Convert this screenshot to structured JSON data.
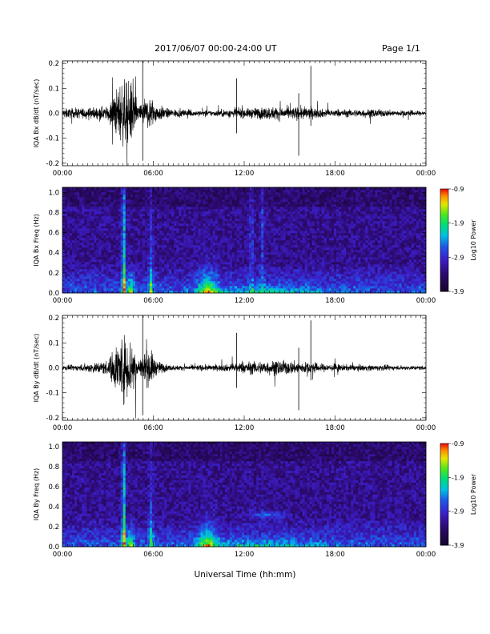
{
  "header": {
    "title": "2017/06/07  00:00-24:00 UT",
    "page": "Page 1/1"
  },
  "x_axis_title": "Universal Time (hh:mm)",
  "colors": {
    "waveform": "#000000",
    "background": "#ffffff",
    "spectrogram_bg": "#1a0a3a"
  },
  "chart_data": [
    {
      "type": "line",
      "ylabel": "IQA Bx dB/dt (nT/sec)",
      "x_ticklabels": [
        "00:00",
        "06:00",
        "12:00",
        "18:00",
        "00:00"
      ],
      "x_range_hours": [
        0,
        24
      ],
      "y_ticklabels": [
        "-0.2",
        "-0.1",
        "0.0",
        "0.1",
        "0.2"
      ],
      "ylim": [
        -0.21,
        0.21
      ],
      "series": [
        {
          "values_envelope_hours": [
            0,
            1,
            2,
            3,
            3.8,
            4.2,
            4.6,
            5,
            5.8,
            6.2,
            7,
            8,
            9,
            10,
            11,
            11.5,
            12,
            13,
            14,
            15,
            16,
            17,
            18,
            19,
            20,
            21,
            22,
            23,
            24
          ],
          "amplitude": [
            0.03,
            0.035,
            0.04,
            0.045,
            0.21,
            0.21,
            0.21,
            0.06,
            0.12,
            0.06,
            0.03,
            0.025,
            0.02,
            0.02,
            0.03,
            0.035,
            0.03,
            0.04,
            0.045,
            0.04,
            0.045,
            0.03,
            0.025,
            0.025,
            0.03,
            0.025,
            0.02,
            0.02,
            0.015
          ]
        }
      ]
    },
    {
      "type": "heatmap",
      "ylabel": "IQA Bx Freq (Hz)",
      "x_ticklabels": [
        "00:00",
        "06:00",
        "12:00",
        "18:00",
        "00:00"
      ],
      "y_ticklabels": [
        "0.0",
        "0.2",
        "0.4",
        "0.6",
        "0.8",
        "1.0"
      ],
      "ylim": [
        0,
        1.05
      ],
      "colorbar_label": "Log10 Power",
      "colorbar_ticklabels": [
        "-0.9",
        "-1.9",
        "-2.9",
        "-3.9"
      ],
      "colorbar_range": [
        -3.9,
        -0.9
      ]
    },
    {
      "type": "line",
      "ylabel": "IQA By dB/dt (nT/sec)",
      "x_ticklabels": [
        "00:00",
        "06:00",
        "12:00",
        "18:00",
        "00:00"
      ],
      "x_range_hours": [
        0,
        24
      ],
      "y_ticklabels": [
        "-0.2",
        "-0.1",
        "0.0",
        "0.1",
        "0.2"
      ],
      "ylim": [
        -0.21,
        0.21
      ],
      "series": [
        {
          "values_envelope_hours": [
            0,
            1,
            2,
            3,
            3.8,
            4.2,
            4.6,
            5,
            5.8,
            6.2,
            7,
            8,
            9,
            10,
            11,
            11.5,
            12,
            13,
            14,
            15,
            16,
            17,
            18,
            19,
            20,
            21,
            22,
            23,
            24
          ],
          "amplitude": [
            0.015,
            0.02,
            0.035,
            0.05,
            0.21,
            0.21,
            0.21,
            0.07,
            0.13,
            0.05,
            0.02,
            0.015,
            0.02,
            0.02,
            0.025,
            0.035,
            0.04,
            0.045,
            0.05,
            0.045,
            0.04,
            0.03,
            0.025,
            0.02,
            0.02,
            0.02,
            0.015,
            0.015,
            0.015
          ]
        }
      ]
    },
    {
      "type": "heatmap",
      "ylabel": "IQA By Freq (Hz)",
      "x_ticklabels": [
        "00:00",
        "06:00",
        "12:00",
        "18:00",
        "00:00"
      ],
      "y_ticklabels": [
        "0.0",
        "0.2",
        "0.4",
        "0.6",
        "0.8",
        "1.0"
      ],
      "ylim": [
        0,
        1.05
      ],
      "colorbar_label": "Log10 Power",
      "colorbar_ticklabels": [
        "-0.9",
        "-1.9",
        "-2.9",
        "-3.9"
      ],
      "colorbar_range": [
        -3.9,
        -0.9
      ]
    }
  ]
}
